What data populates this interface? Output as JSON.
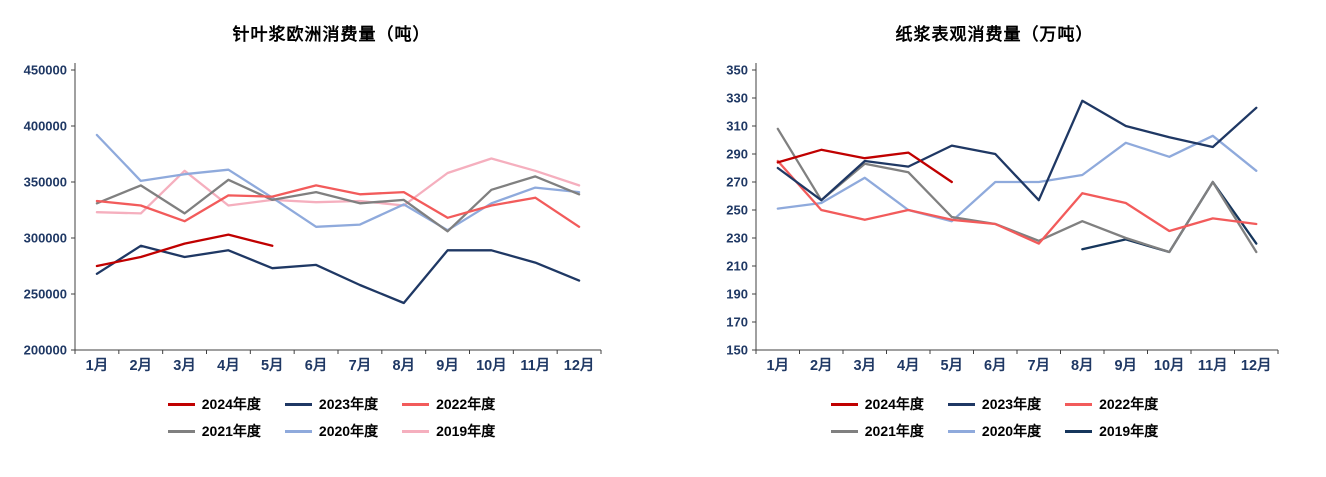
{
  "chart_data": [
    {
      "type": "line",
      "title": "针叶浆欧洲消费量（吨）",
      "xlabel": "",
      "ylabel": "",
      "grid": false,
      "legend_position": "bottom",
      "ylim": [
        200000,
        450000
      ],
      "yticks": [
        200000,
        250000,
        300000,
        350000,
        400000,
        450000
      ],
      "categories": [
        "1月",
        "2月",
        "3月",
        "4月",
        "5月",
        "6月",
        "7月",
        "8月",
        "9月",
        "10月",
        "11月",
        "12月"
      ],
      "series": [
        {
          "name": "2024年度",
          "color": "#C00000",
          "values": [
            275000,
            283000,
            295000,
            303000,
            293000,
            null,
            null,
            null,
            null,
            null,
            null,
            null
          ]
        },
        {
          "name": "2023年度",
          "color": "#1F3864",
          "values": [
            268000,
            293000,
            283000,
            289000,
            273000,
            276000,
            258000,
            242000,
            289000,
            289000,
            278000,
            262000
          ]
        },
        {
          "name": "2022年度",
          "color": "#F25B5B",
          "values": [
            333000,
            329000,
            315000,
            338000,
            337000,
            347000,
            339000,
            341000,
            318000,
            329000,
            336000,
            310000
          ]
        },
        {
          "name": "2021年度",
          "color": "#808080",
          "values": [
            331000,
            347000,
            322000,
            352000,
            334000,
            341000,
            331000,
            334000,
            306000,
            343000,
            355000,
            339000
          ]
        },
        {
          "name": "2020年度",
          "color": "#8FAADC",
          "values": [
            392000,
            351000,
            357000,
            361000,
            336000,
            310000,
            312000,
            330000,
            307000,
            331000,
            345000,
            341000
          ]
        },
        {
          "name": "2019年度",
          "color": "#F5AFBE",
          "values": [
            323000,
            322000,
            360000,
            329000,
            334000,
            332000,
            333000,
            329000,
            358000,
            371000,
            360000,
            347000
          ]
        }
      ]
    },
    {
      "type": "line",
      "title": "纸浆表观消费量（万吨）",
      "xlabel": "",
      "ylabel": "",
      "grid": false,
      "legend_position": "bottom",
      "ylim": [
        150,
        350
      ],
      "yticks": [
        150,
        170,
        190,
        210,
        230,
        250,
        270,
        290,
        310,
        330,
        350
      ],
      "categories": [
        "1月",
        "2月",
        "3月",
        "4月",
        "5月",
        "6月",
        "7月",
        "8月",
        "9月",
        "10月",
        "11月",
        "12月"
      ],
      "series": [
        {
          "name": "2024年度",
          "color": "#C00000",
          "values": [
            284,
            293,
            287,
            291,
            270,
            null,
            null,
            null,
            null,
            null,
            null,
            null
          ]
        },
        {
          "name": "2023年度",
          "color": "#1F3864",
          "values": [
            280,
            257,
            285,
            281,
            296,
            290,
            257,
            328,
            310,
            302,
            295,
            323
          ]
        },
        {
          "name": "2022年度",
          "color": "#F25B5B",
          "values": [
            285,
            250,
            243,
            250,
            243,
            240,
            226,
            262,
            255,
            235,
            244,
            240
          ]
        },
        {
          "name": "2021年度",
          "color": "#808080",
          "values": [
            308,
            257,
            283,
            277,
            245,
            240,
            228,
            242,
            230,
            220,
            270,
            220
          ]
        },
        {
          "name": "2020年度",
          "color": "#8FAADC",
          "values": [
            251,
            255,
            273,
            250,
            242,
            270,
            270,
            275,
            298,
            288,
            303,
            278
          ]
        },
        {
          "name": "2019年度",
          "color": "#16365C",
          "values": [
            null,
            null,
            null,
            null,
            null,
            null,
            null,
            222,
            229,
            220,
            270,
            226
          ]
        }
      ]
    }
  ]
}
